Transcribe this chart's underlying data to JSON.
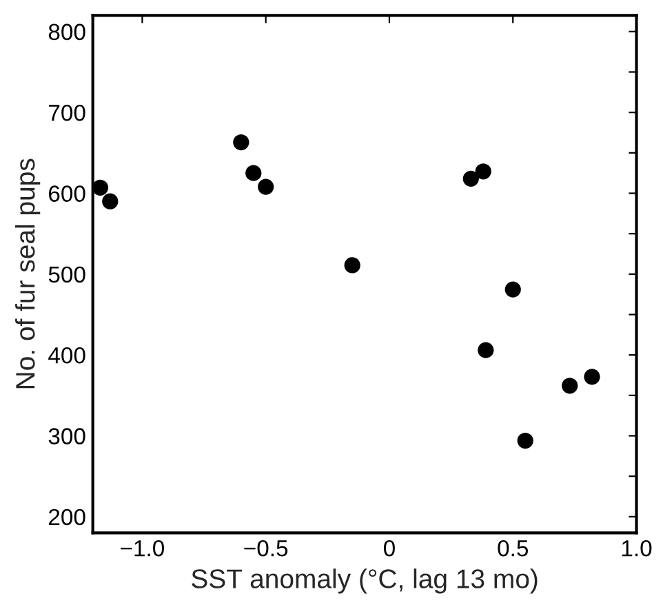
{
  "chart_data": {
    "type": "scatter",
    "xlabel": "SST anomaly (°C, lag 13 mo)",
    "ylabel": "No. of fur seal pups",
    "x": [
      -1.17,
      -1.13,
      -0.6,
      -0.55,
      -0.5,
      -0.15,
      0.33,
      0.38,
      0.5,
      0.39,
      0.73,
      0.82,
      0.55
    ],
    "series": [
      {
        "color": "#000000",
        "values": [
          607,
          590,
          663,
          625,
          608,
          511,
          618,
          627,
          481,
          406,
          362,
          373,
          294
        ]
      }
    ],
    "marker": "circle",
    "grid": false,
    "legend": false,
    "xlim": [
      -1.2,
      1.0
    ],
    "ylim": [
      180,
      820
    ],
    "xticks": [
      {
        "value": -1.0,
        "label": "−1.0"
      },
      {
        "value": -0.5,
        "label": "−0.5"
      },
      0,
      {
        "value": 0.5,
        "label": "0.5"
      },
      {
        "value": 1.0,
        "label": "1.0"
      }
    ],
    "yticks": [
      200,
      {
        "value": 250,
        "label": null
      },
      300,
      {
        "value": 350,
        "label": null
      },
      400,
      {
        "value": 450,
        "label": null
      },
      500,
      {
        "value": 550,
        "label": null
      },
      600,
      {
        "value": 650,
        "label": null
      },
      700,
      {
        "value": 750,
        "label": null
      },
      800
    ]
  }
}
